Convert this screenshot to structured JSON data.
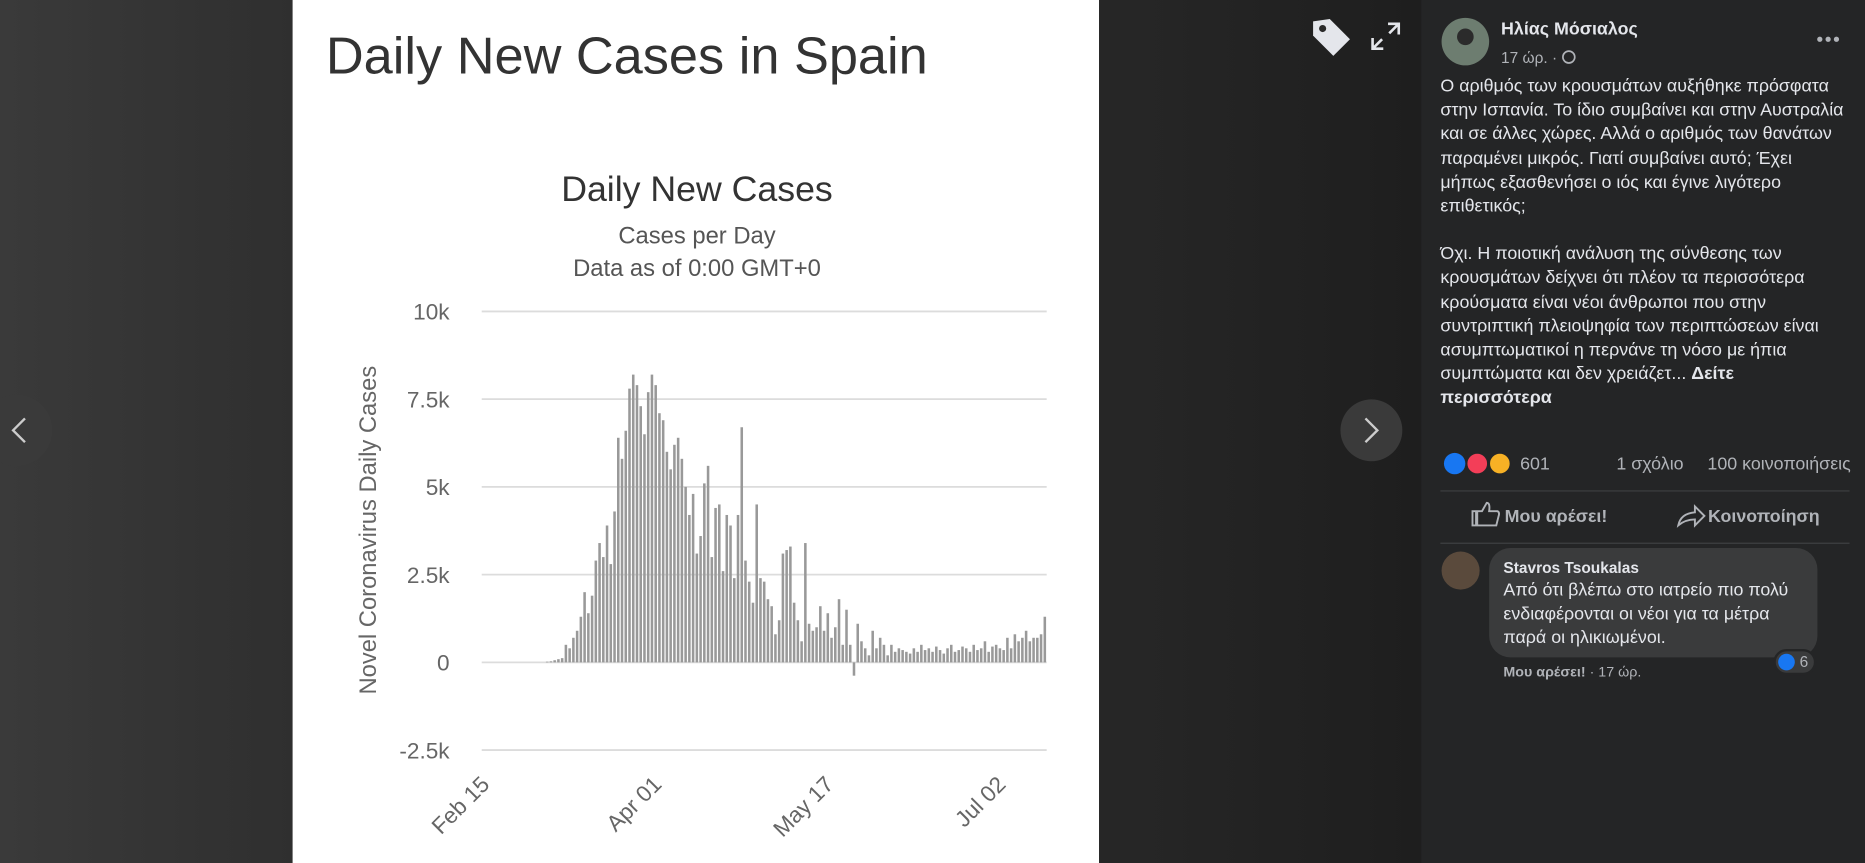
{
  "post": {
    "author": "Ηλίας Μόσιαλος",
    "time": "17 ώρ. ·",
    "paragraphs": [
      "Ο αριθμός των κρουσμάτων αυξήθηκε πρόσφατα στην Ισπανία. Το ίδιο συμβαίνει και στην Αυστραλία και σε άλλες χώρες. Αλλά ο αριθμός των θανάτων παραμένει μικρός. Γιατί συμβαίνει αυτό; Έχει μήπως εξασθενήσει ο ιός και έγινε λιγότερο επιθετικός;",
      "Όχι. Η ποιοτική ανάλυση της σύνθεσης των κρουσμάτων δείχνει ότι πλέον τα περισσότερα κρούσματα είναι νέοι άνθρωποι που στην συντριπτική πλειοψηφία των περιπτώσεων είναι ασυμπτωματικοί η περνάνε τη νόσο με ήπια συμπτώματα και δεν χρειάζετ..."
    ],
    "see_more": "Δείτε περισσότερα",
    "reactions": "601",
    "comments": "1 σχόλιο",
    "shares": "100 κοινοποιήσεις",
    "like_button": "Μου αρέσει!",
    "share_button": "Κοινοποίηση",
    "comment": {
      "author": "Stavros Tsoukalas",
      "text": "Από ότι βλέπω στο ιατρείο πιο πολύ ενδιαφέρονται οι νέοι για τα μέτρα παρά οι ηλικιωμένοι.",
      "likes": "6",
      "like_link": "Μου αρέσει!",
      "time": "· 17 ώρ."
    }
  },
  "chart_data": {
    "type": "bar",
    "heading": "Daily New Cases in Spain",
    "title": "Daily New Cases",
    "subtitle": [
      "Cases per Day",
      "Data as of 0:00 GMT+0"
    ],
    "y_label": "Novel Coronavirus Daily Cases",
    "color": "#999999",
    "grid": true,
    "ylim": [
      -2500,
      10000
    ],
    "yticks": [
      {
        "value": 10000,
        "label": "10k"
      },
      {
        "value": 7500,
        "label": "7.5k"
      },
      {
        "value": 5000,
        "label": "5k"
      },
      {
        "value": 2500,
        "label": "2.5k"
      },
      0,
      {
        "value": -2500,
        "label": "-2.5k"
      }
    ],
    "categories": [
      "Feb 15",
      null,
      null,
      null,
      null,
      null,
      null,
      null,
      null,
      null,
      null,
      null,
      null,
      null,
      null,
      null,
      null,
      null,
      null,
      null,
      null,
      null,
      null,
      null,
      null,
      null,
      null,
      null,
      null,
      null,
      null,
      null,
      null,
      null,
      null,
      null,
      null,
      null,
      null,
      null,
      null,
      null,
      null,
      null,
      null,
      null,
      "Apr 01",
      null,
      null,
      null,
      null,
      null,
      null,
      null,
      null,
      null,
      null,
      null,
      null,
      null,
      null,
      null,
      null,
      null,
      null,
      null,
      null,
      null,
      null,
      null,
      null,
      null,
      null,
      null,
      null,
      null,
      null,
      null,
      null,
      null,
      null,
      null,
      null,
      null,
      null,
      null,
      null,
      null,
      null,
      null,
      null,
      null,
      "May 17",
      null,
      null,
      null,
      null,
      null,
      null,
      null,
      null,
      null,
      null,
      null,
      null,
      null,
      null,
      null,
      null,
      null,
      null,
      null,
      null,
      null,
      null,
      null,
      null,
      null,
      null,
      null,
      null,
      null,
      null,
      null,
      null,
      null,
      null,
      null,
      null,
      null,
      null,
      null,
      null,
      null,
      null,
      null,
      null,
      null,
      "Jul 02",
      null,
      null,
      null,
      null,
      null,
      null,
      null,
      null,
      null,
      null,
      null,
      null
    ],
    "values": [
      0,
      0,
      0,
      0,
      0,
      0,
      0,
      0,
      0,
      0,
      0,
      0,
      0,
      0,
      0,
      0,
      0,
      20,
      30,
      60,
      90,
      120,
      500,
      400,
      700,
      900,
      1300,
      2000,
      1400,
      1900,
      2900,
      3400,
      3000,
      3900,
      2800,
      4300,
      6400,
      5800,
      6600,
      7800,
      8200,
      7900,
      7300,
      6500,
      7700,
      8200,
      7900,
      7100,
      6900,
      6000,
      5500,
      6200,
      6400,
      5800,
      5000,
      4200,
      4800,
      3100,
      3600,
      5100,
      5600,
      3000,
      4400,
      4500,
      2600,
      4200,
      3900,
      2400,
      4200,
      6700,
      2900,
      2300,
      1700,
      4500,
      2400,
      2300,
      1800,
      1600,
      800,
      1200,
      3100,
      3200,
      3300,
      1700,
      1200,
      600,
      3400,
      1100,
      900,
      1000,
      1600,
      900,
      1400,
      700,
      1000,
      1800,
      500,
      1500,
      500,
      -380,
      1100,
      600,
      400,
      200,
      900,
      400,
      700,
      500,
      200,
      500,
      300,
      400,
      350,
      300,
      250,
      400,
      300,
      500,
      350,
      400,
      300,
      450,
      350,
      250,
      400,
      500,
      300,
      350,
      450,
      400,
      300,
      500,
      350,
      400,
      600,
      300,
      450,
      500,
      400,
      350,
      700,
      400,
      800,
      600,
      700,
      900,
      600,
      700,
      700,
      800,
      1300
    ]
  }
}
